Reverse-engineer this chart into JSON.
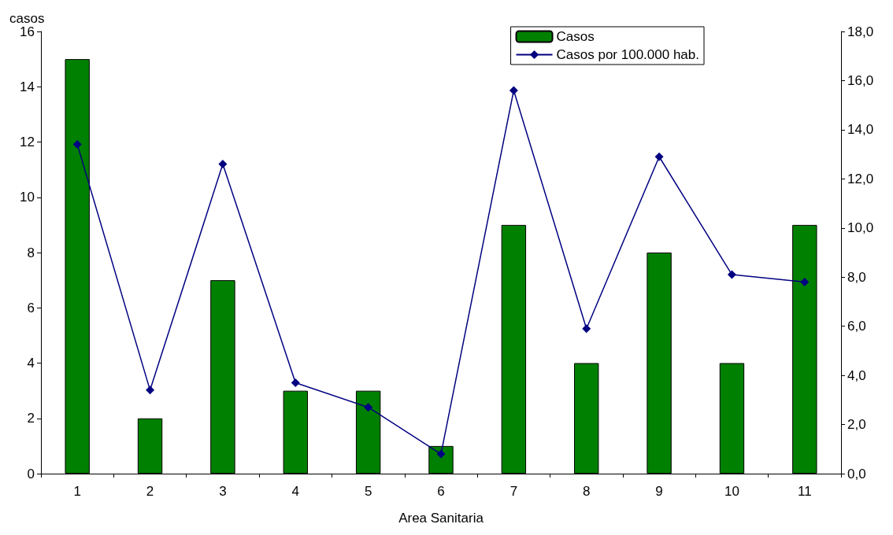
{
  "chart_data": {
    "type": "bar",
    "xlabel": "Area Sanitaria",
    "ylabel": "casos",
    "categories": [
      "1",
      "2",
      "3",
      "4",
      "5",
      "6",
      "7",
      "8",
      "9",
      "10",
      "11"
    ],
    "series": [
      {
        "name": "Casos",
        "color": "#008000",
        "values": [
          15,
          2,
          7,
          3,
          3,
          1,
          9,
          4,
          8,
          4,
          9
        ]
      },
      {
        "name": "Casos por 100.000 hab.",
        "type": "line",
        "axis": "y2",
        "color": "#000080",
        "marker": "diamond",
        "values": [
          13.4,
          3.4,
          12.6,
          3.7,
          2.7,
          0.8,
          15.6,
          5.9,
          12.9,
          8.1,
          7.8
        ]
      }
    ],
    "ylim": [
      0,
      16
    ],
    "yticks": [
      0,
      2,
      4,
      6,
      8,
      10,
      12,
      14,
      16
    ],
    "y2lim": [
      0,
      18
    ],
    "y2ticks": [
      {
        "value": 0,
        "label": "0,0"
      },
      {
        "value": 2,
        "label": "2,0"
      },
      {
        "value": 4,
        "label": "4,0"
      },
      {
        "value": 6,
        "label": "6,0"
      },
      {
        "value": 8,
        "label": "8,0"
      },
      {
        "value": 10,
        "label": "10,0"
      },
      {
        "value": 12,
        "label": "12,0"
      },
      {
        "value": 14,
        "label": "14,0"
      },
      {
        "value": 16,
        "label": "16,0"
      },
      {
        "value": 18,
        "label": "18,0"
      }
    ],
    "grid": false,
    "legend": "top right"
  }
}
